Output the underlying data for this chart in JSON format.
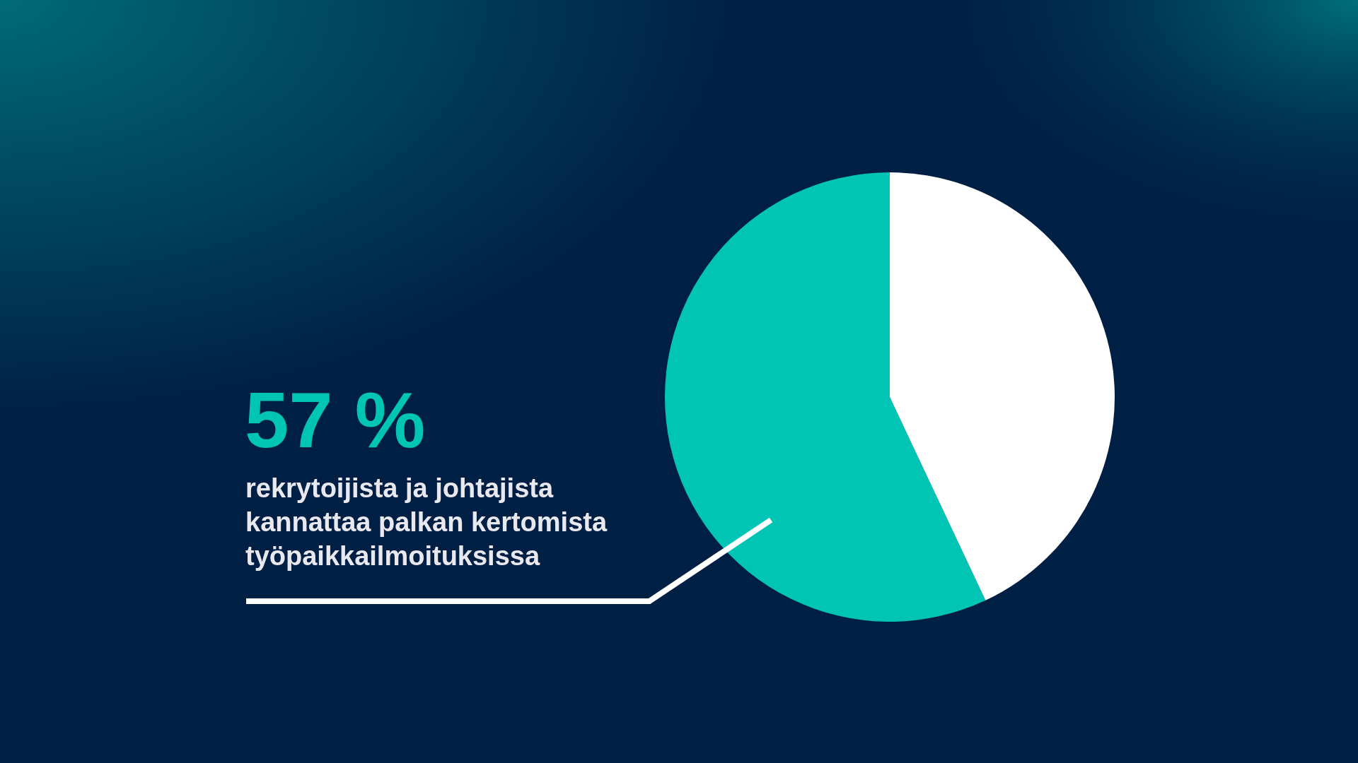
{
  "chart_data": {
    "type": "pie",
    "categories": [
      null,
      null
    ],
    "values": [
      57,
      43
    ],
    "colors": [
      "#00c4b4",
      "#ffffff"
    ],
    "value_labels": [
      "57 %",
      null
    ],
    "annotations": [
      "rekrytoijista ja johtajista kannattaa palkan kertomista työpaikkailmoituksissa"
    ]
  }
}
